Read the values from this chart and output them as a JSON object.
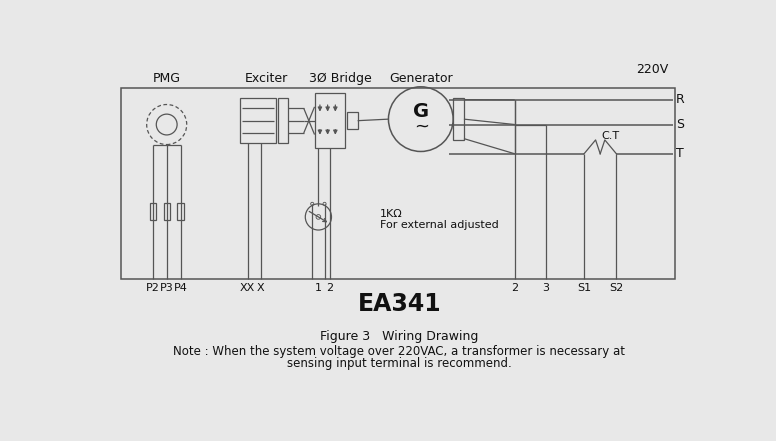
{
  "title": "EA341",
  "figure_caption": "Figure 3   Wiring Drawing",
  "note_line1": "Note : When the system voltage over 220VAC, a transformer is necessary at",
  "note_line2": "sensing input terminal is recommend.",
  "label_220V": "220V",
  "label_R": "R",
  "label_S": "S",
  "label_T": "T",
  "label_CT": "C.T",
  "label_PMG": "PMG",
  "label_Exciter": "Exciter",
  "label_Bridge": "3Ø Bridge",
  "label_Generator": "Generator",
  "label_1KOhm": "1KΩ",
  "label_ext": "For external adjusted",
  "bg_color": "#e8e8e8",
  "line_color": "#555555",
  "text_color": "#111111",
  "box_bg": "#e8e8e8"
}
